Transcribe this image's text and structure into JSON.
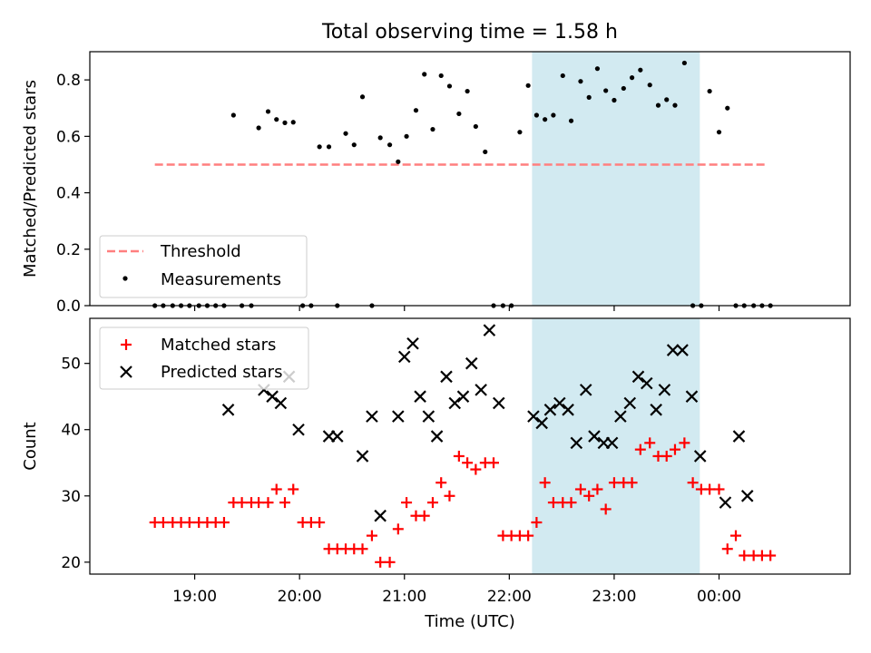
{
  "title": "Total observing time = 1.58 h",
  "xlabel": "Time (UTC)",
  "x_ticks": [
    "19:00",
    "20:00",
    "21:00",
    "22:00",
    "23:00",
    "00:00"
  ],
  "colors": {
    "span": "#add8e6",
    "threshold": "#ff7f7f",
    "measurements": "#000000",
    "matched": "#ff0000",
    "predicted": "#000000"
  },
  "chart_data": [
    {
      "type": "scatter",
      "ylabel": "Matched/Predicted stars",
      "ylim": [
        0,
        0.9
      ],
      "y_ticks": [
        "0.0",
        "0.2",
        "0.4",
        "0.6",
        "0.8"
      ],
      "x_unit": "hours UTC (24 = 00:00 next day)",
      "xlim": [
        18.0,
        25.25
      ],
      "shaded_interval": [
        "22:13",
        "23:49"
      ],
      "legend": {
        "position": "lower-left",
        "entries": [
          "Threshold",
          "Measurements"
        ]
      },
      "series": [
        {
          "name": "Threshold",
          "style": "dashed-line",
          "x": [
            18.62,
            24.45
          ],
          "y": [
            0.5,
            0.5
          ]
        },
        {
          "name": "Measurements",
          "style": "dot",
          "x": [
            18.62,
            18.7,
            18.79,
            18.87,
            18.95,
            19.04,
            19.12,
            19.2,
            19.28,
            19.37,
            19.45,
            19.54,
            19.61,
            19.7,
            19.78,
            19.86,
            19.94,
            20.03,
            20.11,
            20.19,
            20.28,
            20.36,
            20.44,
            20.52,
            20.6,
            20.69,
            20.77,
            20.86,
            20.94,
            21.02,
            21.11,
            21.19,
            21.27,
            21.35,
            21.43,
            21.52,
            21.6,
            21.68,
            21.77,
            21.85,
            21.94,
            22.02,
            22.1,
            22.18,
            22.26,
            22.34,
            22.42,
            22.51,
            22.59,
            22.68,
            22.76,
            22.84,
            22.92,
            23.0,
            23.09,
            23.17,
            23.25,
            23.34,
            23.42,
            23.5,
            23.58,
            23.67,
            23.75,
            23.83,
            23.91,
            24.0,
            24.08,
            24.16,
            24.24,
            24.33,
            24.41,
            24.49
          ],
          "y": [
            0.0,
            0.0,
            0.0,
            0.0,
            0.0,
            0.0,
            0.0,
            0.0,
            0.0,
            0.675,
            0.0,
            0.0,
            0.63,
            0.688,
            0.66,
            0.648,
            0.65,
            0.0,
            0.0,
            0.563,
            0.563,
            0.0,
            0.61,
            0.57,
            0.74,
            0.0,
            0.595,
            0.57,
            0.51,
            0.6,
            0.692,
            0.82,
            0.625,
            0.815,
            0.778,
            0.68,
            0.76,
            0.635,
            0.545,
            0.0,
            0.0,
            0.0,
            0.615,
            0.78,
            0.675,
            0.66,
            0.675,
            0.815,
            0.655,
            0.795,
            0.738,
            0.84,
            0.762,
            0.728,
            0.77,
            0.808,
            0.835,
            0.782,
            0.71,
            0.73,
            0.71,
            0.86,
            0.0,
            0.0,
            0.76,
            0.615,
            0.7,
            0.0,
            0.0,
            0.0,
            0.0,
            0.0
          ]
        }
      ]
    },
    {
      "type": "scatter",
      "ylabel": "Count",
      "ylim": [
        18.2,
        56.8
      ],
      "y_ticks": [
        "20",
        "30",
        "40",
        "50"
      ],
      "x_unit": "hours UTC (24 = 00:00 next day)",
      "xlim": [
        18.0,
        25.25
      ],
      "shaded_interval": [
        "22:13",
        "23:49"
      ],
      "legend": {
        "position": "upper-left",
        "entries": [
          "Matched stars",
          "Predicted stars"
        ]
      },
      "series": [
        {
          "name": "Matched stars",
          "style": "plus",
          "x": [
            18.62,
            18.7,
            18.79,
            18.87,
            18.95,
            19.04,
            19.12,
            19.2,
            19.28,
            19.37,
            19.45,
            19.54,
            19.61,
            19.7,
            19.78,
            19.86,
            19.94,
            20.03,
            20.11,
            20.19,
            20.28,
            20.36,
            20.44,
            20.52,
            20.6,
            20.69,
            20.77,
            20.86,
            20.94,
            21.02,
            21.11,
            21.19,
            21.27,
            21.35,
            21.43,
            21.52,
            21.6,
            21.68,
            21.77,
            21.85,
            21.94,
            22.02,
            22.1,
            22.18,
            22.26,
            22.34,
            22.42,
            22.51,
            22.59,
            22.68,
            22.76,
            22.84,
            22.92,
            23.0,
            23.09,
            23.17,
            23.25,
            23.34,
            23.42,
            23.5,
            23.58,
            23.67,
            23.75,
            23.83,
            23.91,
            24.0,
            24.08,
            24.16,
            24.24,
            24.33,
            24.41,
            24.49
          ],
          "y": [
            26,
            26,
            26,
            26,
            26,
            26,
            26,
            26,
            26,
            29,
            29,
            29,
            29,
            29,
            31,
            29,
            31,
            26,
            26,
            26,
            22,
            22,
            22,
            22,
            22,
            24,
            20,
            20,
            25,
            29,
            27,
            27,
            29,
            32,
            30,
            36,
            35,
            34,
            35,
            35,
            24,
            24,
            24,
            24,
            26,
            32,
            29,
            29,
            29,
            31,
            30,
            31,
            28,
            32,
            32,
            32,
            37,
            38,
            36,
            36,
            37,
            38,
            32,
            31,
            31,
            31,
            22,
            24,
            21,
            21,
            21,
            21
          ]
        },
        {
          "name": "Predicted stars",
          "style": "x",
          "x": [
            19.32,
            19.66,
            19.74,
            19.82,
            19.9,
            19.99,
            20.28,
            20.36,
            20.6,
            20.69,
            20.77,
            20.94,
            21.0,
            21.08,
            21.15,
            21.23,
            21.31,
            21.4,
            21.48,
            21.56,
            21.64,
            21.73,
            21.81,
            21.9,
            22.23,
            22.31,
            22.39,
            22.48,
            22.56,
            22.64,
            22.73,
            22.81,
            22.9,
            22.98,
            23.06,
            23.15,
            23.23,
            23.31,
            23.4,
            23.48,
            23.56,
            23.65,
            23.74,
            23.82,
            24.06,
            24.19,
            24.27
          ],
          "y": [
            43,
            46,
            45,
            44,
            48,
            40,
            39,
            39,
            36,
            42,
            27,
            42,
            51,
            53,
            45,
            42,
            39,
            48,
            44,
            45,
            50,
            46,
            55,
            44,
            42,
            41,
            43,
            44,
            43,
            38,
            46,
            39,
            38,
            38,
            42,
            44,
            48,
            47,
            43,
            46,
            52,
            52,
            45,
            36,
            29,
            39,
            30
          ]
        }
      ]
    }
  ]
}
